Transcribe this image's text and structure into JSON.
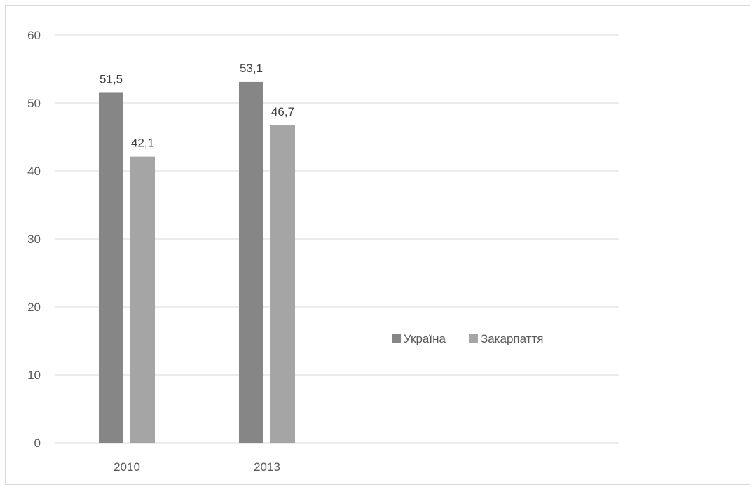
{
  "chart_data": {
    "type": "bar",
    "title": "",
    "xlabel": "",
    "ylabel": "",
    "categories": [
      "2010",
      "2013"
    ],
    "series": [
      {
        "name": "Україна",
        "values": [
          51.5,
          53.1
        ],
        "labels": [
          "51,5",
          "53,1"
        ],
        "color": "#868686"
      },
      {
        "name": "Закарпаття",
        "values": [
          42.1,
          46.7
        ],
        "labels": [
          "42,1",
          "46,7"
        ],
        "color": "#a5a5a5"
      }
    ],
    "ylim": [
      0,
      60
    ],
    "yticks": [
      0,
      10,
      20,
      30,
      40,
      50,
      60
    ],
    "grid": true,
    "gridColor": "#d9d9d9",
    "legend": "right"
  }
}
